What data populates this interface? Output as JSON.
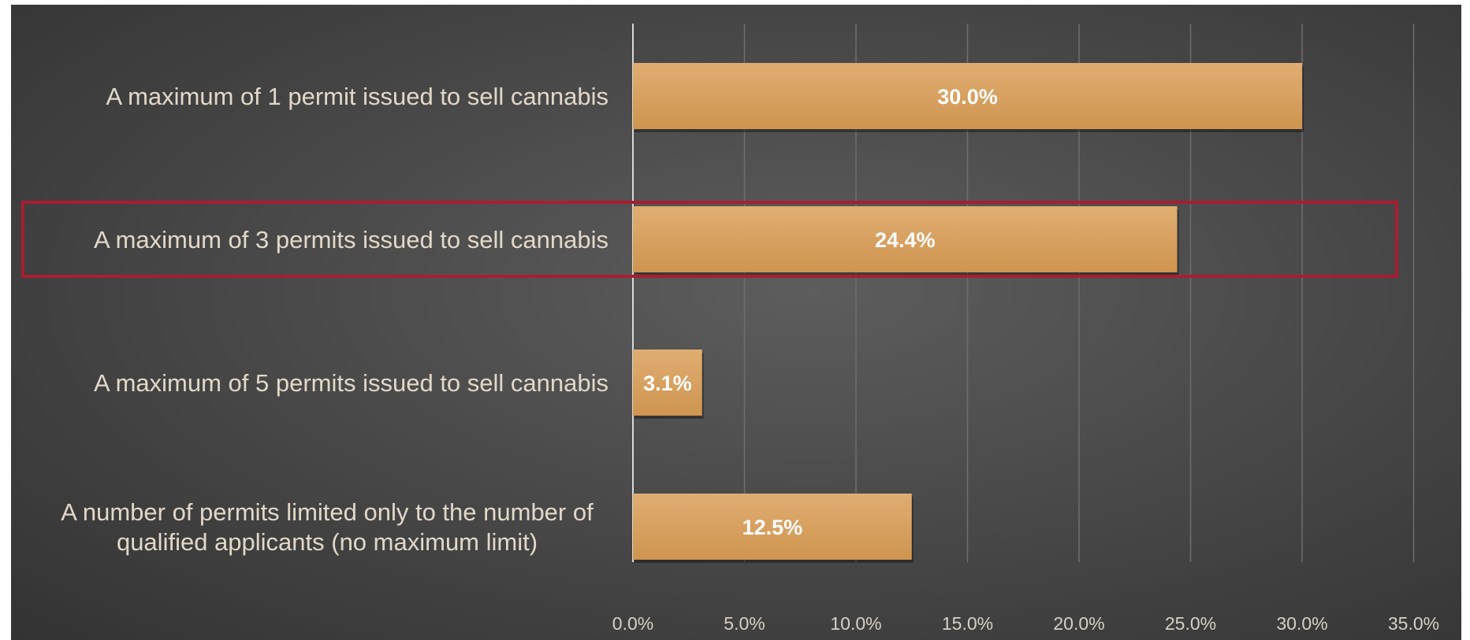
{
  "chart_data": {
    "type": "bar",
    "orientation": "horizontal",
    "categories": [
      [
        "A maximum of 1 permit issued to sell cannabis"
      ],
      [
        "A maximum of 3 permits issued to sell cannabis"
      ],
      [
        "A maximum of 5 permits issued to sell cannabis"
      ],
      [
        "A number of permits limited only to the number of",
        "qualified applicants (no maximum limit)"
      ]
    ],
    "values": [
      30.0,
      24.4,
      3.1,
      12.5
    ],
    "data_labels": [
      "30.0%",
      "24.4%",
      "3.1%",
      "12.5%"
    ],
    "xlim": [
      0,
      35
    ],
    "x_ticks": [
      0,
      5,
      10,
      15,
      20,
      25,
      30,
      35
    ],
    "x_tick_labels": [
      "0.0%",
      "5.0%",
      "10.0%",
      "15.0%",
      "20.0%",
      "25.0%",
      "30.0%",
      "35.0%"
    ],
    "grid": true,
    "highlighted_category_index": 1,
    "colors": {
      "bar_top": "#e0ad72",
      "bar_bottom": "#cf9550",
      "highlight_box": "#a81e32",
      "gridline": "#6e6e6e",
      "axis_line": "#d8d8d8"
    }
  }
}
